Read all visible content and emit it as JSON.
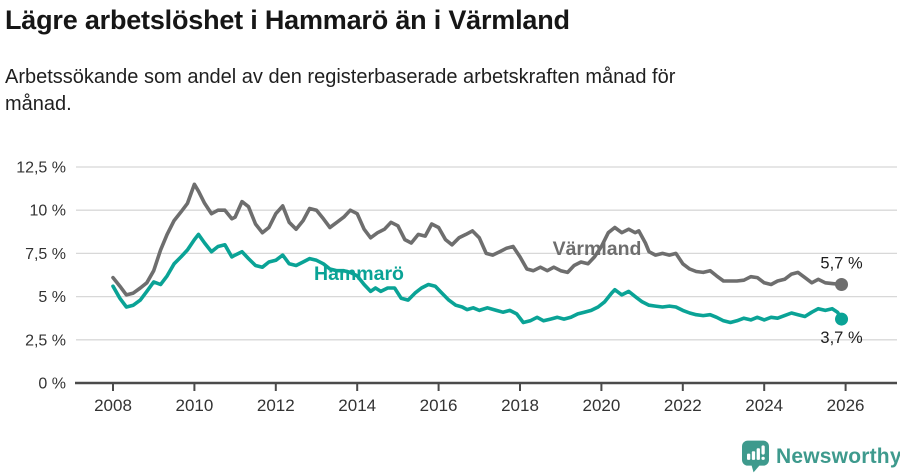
{
  "header": {
    "title": "Lägre arbetslöshet i Hammarö än i Värmland",
    "subtitle": "Arbetssökande som andel av den registerbaserade arbetskraften månad för månad.",
    "subtitle_lines": [
      "Arbetssökande som andel av den registerbaserade arbetskraften månad för",
      "månad."
    ]
  },
  "footer": {
    "brand": "Newsworthy",
    "logo_icon": "bar-chart-pin-icon"
  },
  "colors": {
    "hammaro": "#0aa396",
    "varmland": "#6e6e6e",
    "grid": "#d8d8d8",
    "axis": "#4b4b4b",
    "axis_text": "#333333",
    "end_label_text": "#1d1d1d",
    "logo": "#3e9a8d"
  },
  "chart_data": {
    "type": "line",
    "title": "Lägre arbetslöshet i Hammarö än i Värmland",
    "x_axis": {
      "ticks": [
        2008,
        2010,
        2012,
        2014,
        2016,
        2018,
        2020,
        2022,
        2024,
        2026
      ],
      "range": [
        2007.1,
        2027.3
      ]
    },
    "y_axis": {
      "tick_values": [
        0,
        2.5,
        5,
        7.5,
        10,
        12.5
      ],
      "tick_labels": [
        "0 %",
        "2,5 %",
        "5 %",
        "7,5 %",
        "10 %",
        "12,5 %"
      ],
      "range": [
        0,
        12.5
      ],
      "unit": "%"
    },
    "grid": true,
    "legend_position": "inline-labels",
    "series": [
      {
        "name": "Värmland",
        "color": "#6e6e6e",
        "end_label": "5,7 %",
        "points": [
          [
            2008.0,
            6.1
          ],
          [
            2008.17,
            5.6
          ],
          [
            2008.33,
            5.1
          ],
          [
            2008.5,
            5.2
          ],
          [
            2008.67,
            5.5
          ],
          [
            2008.83,
            5.8
          ],
          [
            2009.0,
            6.5
          ],
          [
            2009.17,
            7.7
          ],
          [
            2009.33,
            8.6
          ],
          [
            2009.5,
            9.4
          ],
          [
            2009.67,
            9.9
          ],
          [
            2009.83,
            10.4
          ],
          [
            2010.0,
            11.5
          ],
          [
            2010.1,
            11.1
          ],
          [
            2010.25,
            10.4
          ],
          [
            2010.42,
            9.8
          ],
          [
            2010.58,
            10.0
          ],
          [
            2010.75,
            10.0
          ],
          [
            2010.92,
            9.5
          ],
          [
            2011.0,
            9.6
          ],
          [
            2011.17,
            10.5
          ],
          [
            2011.33,
            10.2
          ],
          [
            2011.5,
            9.2
          ],
          [
            2011.67,
            8.7
          ],
          [
            2011.83,
            9.0
          ],
          [
            2012.0,
            9.8
          ],
          [
            2012.17,
            10.25
          ],
          [
            2012.33,
            9.3
          ],
          [
            2012.5,
            8.9
          ],
          [
            2012.67,
            9.4
          ],
          [
            2012.83,
            10.1
          ],
          [
            2013.0,
            10.0
          ],
          [
            2013.17,
            9.5
          ],
          [
            2013.33,
            9.0
          ],
          [
            2013.5,
            9.3
          ],
          [
            2013.67,
            9.6
          ],
          [
            2013.83,
            10.0
          ],
          [
            2014.0,
            9.8
          ],
          [
            2014.17,
            8.9
          ],
          [
            2014.33,
            8.4
          ],
          [
            2014.5,
            8.7
          ],
          [
            2014.67,
            8.9
          ],
          [
            2014.83,
            9.3
          ],
          [
            2015.0,
            9.1
          ],
          [
            2015.17,
            8.3
          ],
          [
            2015.33,
            8.1
          ],
          [
            2015.5,
            8.6
          ],
          [
            2015.67,
            8.5
          ],
          [
            2015.83,
            9.2
          ],
          [
            2016.0,
            9.0
          ],
          [
            2016.17,
            8.3
          ],
          [
            2016.33,
            8.0
          ],
          [
            2016.5,
            8.4
          ],
          [
            2016.67,
            8.6
          ],
          [
            2016.83,
            8.8
          ],
          [
            2017.0,
            8.4
          ],
          [
            2017.17,
            7.5
          ],
          [
            2017.33,
            7.4
          ],
          [
            2017.5,
            7.6
          ],
          [
            2017.67,
            7.8
          ],
          [
            2017.83,
            7.9
          ],
          [
            2018.0,
            7.3
          ],
          [
            2018.17,
            6.6
          ],
          [
            2018.33,
            6.5
          ],
          [
            2018.5,
            6.7
          ],
          [
            2018.67,
            6.5
          ],
          [
            2018.83,
            6.7
          ],
          [
            2019.0,
            6.5
          ],
          [
            2019.17,
            6.4
          ],
          [
            2019.33,
            6.8
          ],
          [
            2019.5,
            7.0
          ],
          [
            2019.67,
            6.9
          ],
          [
            2019.83,
            7.3
          ],
          [
            2020.0,
            7.9
          ],
          [
            2020.17,
            8.7
          ],
          [
            2020.33,
            9.0
          ],
          [
            2020.5,
            8.7
          ],
          [
            2020.67,
            8.9
          ],
          [
            2020.83,
            8.7
          ],
          [
            2020.92,
            8.8
          ],
          [
            2021.08,
            8.1
          ],
          [
            2021.17,
            7.6
          ],
          [
            2021.33,
            7.4
          ],
          [
            2021.5,
            7.5
          ],
          [
            2021.67,
            7.4
          ],
          [
            2021.83,
            7.5
          ],
          [
            2022.0,
            6.9
          ],
          [
            2022.17,
            6.6
          ],
          [
            2022.33,
            6.45
          ],
          [
            2022.5,
            6.4
          ],
          [
            2022.67,
            6.5
          ],
          [
            2022.83,
            6.2
          ],
          [
            2023.0,
            5.9
          ],
          [
            2023.17,
            5.9
          ],
          [
            2023.33,
            5.9
          ],
          [
            2023.5,
            5.95
          ],
          [
            2023.67,
            6.15
          ],
          [
            2023.83,
            6.1
          ],
          [
            2024.0,
            5.8
          ],
          [
            2024.17,
            5.7
          ],
          [
            2024.33,
            5.9
          ],
          [
            2024.5,
            6.0
          ],
          [
            2024.67,
            6.3
          ],
          [
            2024.83,
            6.4
          ],
          [
            2025.0,
            6.1
          ],
          [
            2025.17,
            5.8
          ],
          [
            2025.33,
            6.0
          ],
          [
            2025.5,
            5.8
          ],
          [
            2025.67,
            5.75
          ],
          [
            2025.9,
            5.7
          ]
        ]
      },
      {
        "name": "Hammarö",
        "color": "#0aa396",
        "end_label": "3,7 %",
        "points": [
          [
            2008.0,
            5.6
          ],
          [
            2008.17,
            4.9
          ],
          [
            2008.33,
            4.4
          ],
          [
            2008.5,
            4.5
          ],
          [
            2008.67,
            4.8
          ],
          [
            2008.83,
            5.3
          ],
          [
            2009.0,
            5.85
          ],
          [
            2009.17,
            5.7
          ],
          [
            2009.33,
            6.2
          ],
          [
            2009.5,
            6.9
          ],
          [
            2009.67,
            7.3
          ],
          [
            2009.83,
            7.7
          ],
          [
            2010.0,
            8.3
          ],
          [
            2010.1,
            8.6
          ],
          [
            2010.25,
            8.1
          ],
          [
            2010.42,
            7.6
          ],
          [
            2010.58,
            7.9
          ],
          [
            2010.75,
            8.0
          ],
          [
            2010.92,
            7.3
          ],
          [
            2011.0,
            7.4
          ],
          [
            2011.17,
            7.6
          ],
          [
            2011.33,
            7.2
          ],
          [
            2011.5,
            6.8
          ],
          [
            2011.67,
            6.7
          ],
          [
            2011.83,
            7.0
          ],
          [
            2012.0,
            7.1
          ],
          [
            2012.17,
            7.4
          ],
          [
            2012.33,
            6.9
          ],
          [
            2012.5,
            6.8
          ],
          [
            2012.67,
            7.0
          ],
          [
            2012.83,
            7.2
          ],
          [
            2013.0,
            7.1
          ],
          [
            2013.17,
            6.9
          ],
          [
            2013.33,
            6.6
          ],
          [
            2013.5,
            6.5
          ],
          [
            2013.67,
            6.5
          ],
          [
            2013.83,
            6.4
          ],
          [
            2014.0,
            6.2
          ],
          [
            2014.17,
            5.7
          ],
          [
            2014.33,
            5.3
          ],
          [
            2014.45,
            5.5
          ],
          [
            2014.58,
            5.3
          ],
          [
            2014.75,
            5.5
          ],
          [
            2014.92,
            5.5
          ],
          [
            2015.08,
            4.9
          ],
          [
            2015.25,
            4.8
          ],
          [
            2015.42,
            5.2
          ],
          [
            2015.58,
            5.5
          ],
          [
            2015.75,
            5.7
          ],
          [
            2015.92,
            5.6
          ],
          [
            2016.08,
            5.2
          ],
          [
            2016.25,
            4.8
          ],
          [
            2016.42,
            4.5
          ],
          [
            2016.58,
            4.4
          ],
          [
            2016.7,
            4.25
          ],
          [
            2016.85,
            4.35
          ],
          [
            2017.0,
            4.2
          ],
          [
            2017.2,
            4.35
          ],
          [
            2017.42,
            4.2
          ],
          [
            2017.58,
            4.1
          ],
          [
            2017.75,
            4.2
          ],
          [
            2017.92,
            4.0
          ],
          [
            2018.08,
            3.5
          ],
          [
            2018.25,
            3.6
          ],
          [
            2018.42,
            3.8
          ],
          [
            2018.58,
            3.6
          ],
          [
            2018.75,
            3.7
          ],
          [
            2018.92,
            3.8
          ],
          [
            2019.08,
            3.7
          ],
          [
            2019.25,
            3.8
          ],
          [
            2019.42,
            4.0
          ],
          [
            2019.58,
            4.1
          ],
          [
            2019.75,
            4.2
          ],
          [
            2019.92,
            4.4
          ],
          [
            2020.08,
            4.7
          ],
          [
            2020.25,
            5.2
          ],
          [
            2020.33,
            5.4
          ],
          [
            2020.5,
            5.1
          ],
          [
            2020.67,
            5.3
          ],
          [
            2020.83,
            5.0
          ],
          [
            2021.0,
            4.7
          ],
          [
            2021.17,
            4.5
          ],
          [
            2021.33,
            4.45
          ],
          [
            2021.5,
            4.4
          ],
          [
            2021.67,
            4.45
          ],
          [
            2021.83,
            4.4
          ],
          [
            2022.0,
            4.2
          ],
          [
            2022.17,
            4.05
          ],
          [
            2022.33,
            3.95
          ],
          [
            2022.5,
            3.9
          ],
          [
            2022.67,
            3.95
          ],
          [
            2022.83,
            3.8
          ],
          [
            2023.0,
            3.6
          ],
          [
            2023.17,
            3.5
          ],
          [
            2023.33,
            3.6
          ],
          [
            2023.5,
            3.75
          ],
          [
            2023.67,
            3.65
          ],
          [
            2023.83,
            3.8
          ],
          [
            2024.0,
            3.65
          ],
          [
            2024.17,
            3.8
          ],
          [
            2024.33,
            3.75
          ],
          [
            2024.5,
            3.9
          ],
          [
            2024.67,
            4.05
          ],
          [
            2024.83,
            3.95
          ],
          [
            2025.0,
            3.85
          ],
          [
            2025.17,
            4.1
          ],
          [
            2025.33,
            4.3
          ],
          [
            2025.5,
            4.2
          ],
          [
            2025.67,
            4.3
          ],
          [
            2025.8,
            4.1
          ],
          [
            2025.9,
            3.7
          ]
        ]
      }
    ]
  }
}
